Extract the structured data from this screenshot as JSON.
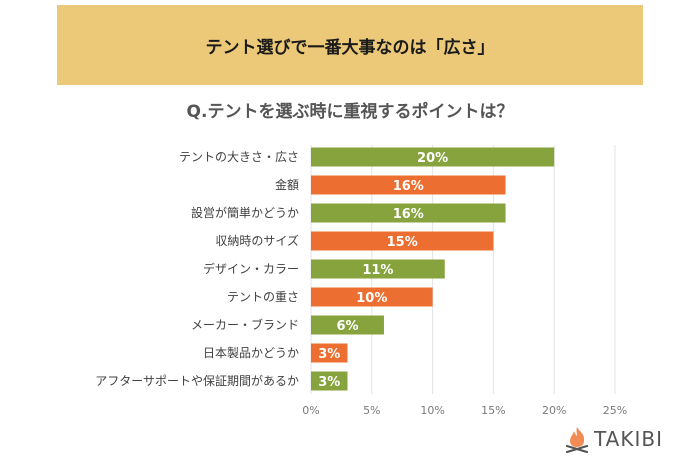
{
  "banner": {
    "title": "テント選びで一番大事なのは「広さ」"
  },
  "chart_data": {
    "type": "bar",
    "orientation": "horizontal",
    "title": "Q.テントを選ぶ時に重視するポイントは？",
    "categories": [
      "テントの大きさ・広さ",
      "金額",
      "設営が簡単かどうか",
      "収納時のサイズ",
      "デザイン・カラー",
      "テントの重さ",
      "メーカー・ブランド",
      "日本製品かどうか",
      "アフターサポートや保証期間があるか"
    ],
    "values": [
      20,
      16,
      16,
      15,
      11,
      10,
      6,
      3,
      3
    ],
    "data_labels": [
      "20%",
      "16%",
      "16%",
      "15%",
      "11%",
      "10%",
      "6%",
      "3%",
      "3%"
    ],
    "bar_colors": [
      "#86a33d",
      "#ed6e31",
      "#86a33d",
      "#ed6e31",
      "#86a33d",
      "#ed6e31",
      "#86a33d",
      "#ed6e31",
      "#86a33d"
    ],
    "xlim": [
      0,
      25
    ],
    "xticks": [
      0,
      5,
      10,
      15,
      20,
      25
    ],
    "xtick_labels": [
      "0%",
      "5%",
      "10%",
      "15%",
      "20%",
      "25%"
    ],
    "xlabel": "",
    "ylabel": "",
    "grid": true,
    "legend": "none"
  },
  "logo": {
    "text": "TAKIBI",
    "icon": "campfire-icon",
    "flame_color": "#f28c54"
  }
}
